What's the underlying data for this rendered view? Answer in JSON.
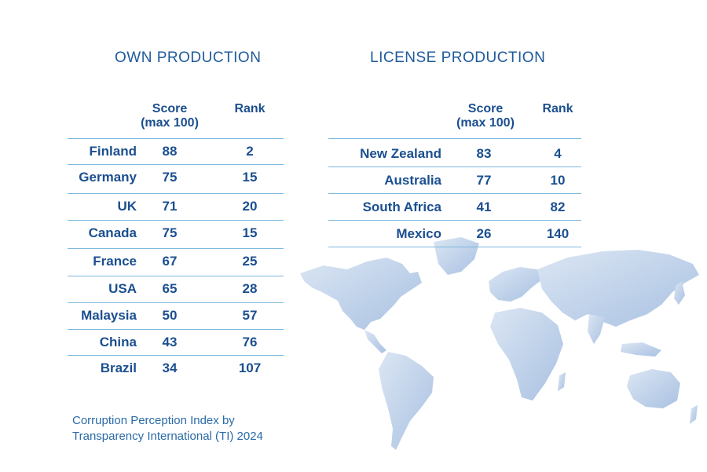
{
  "own": {
    "heading": "OWN PRODUCTION",
    "score_header": [
      "Score",
      "(max 100)"
    ],
    "rank_header": "Rank",
    "rows": [
      {
        "country": "Finland",
        "score": "88",
        "rank": "2"
      },
      {
        "country": "Germany",
        "score": "75",
        "rank": "15"
      },
      {
        "country": "UK",
        "score": "71",
        "rank": "20"
      },
      {
        "country": "Canada",
        "score": "75",
        "rank": "15"
      },
      {
        "country": "France",
        "score": "67",
        "rank": "25"
      },
      {
        "country": "USA",
        "score": "65",
        "rank": "28"
      },
      {
        "country": "Malaysia",
        "score": "50",
        "rank": "57"
      },
      {
        "country": "China",
        "score": "43",
        "rank": "76"
      },
      {
        "country": "Brazil",
        "score": "34",
        "rank": "107"
      }
    ]
  },
  "license": {
    "heading": "LICENSE PRODUCTION",
    "score_header": [
      "Score",
      "(max 100)"
    ],
    "rank_header": "Rank",
    "rows": [
      {
        "country": "New Zealand",
        "score": "83",
        "rank": "4"
      },
      {
        "country": "Australia",
        "score": "77",
        "rank": "10"
      },
      {
        "country": "South Africa",
        "score": "41",
        "rank": "82"
      },
      {
        "country": "Mexico",
        "score": "26",
        "rank": "140"
      }
    ]
  },
  "footnote": [
    "Corruption Perception Index by",
    "Transparency International (TI) 2024"
  ],
  "colors": {
    "text": "#1b4f8f",
    "rule": "#7db9df",
    "map": "#b5cbe6"
  },
  "icons": {
    "map": "world-map-icon"
  }
}
